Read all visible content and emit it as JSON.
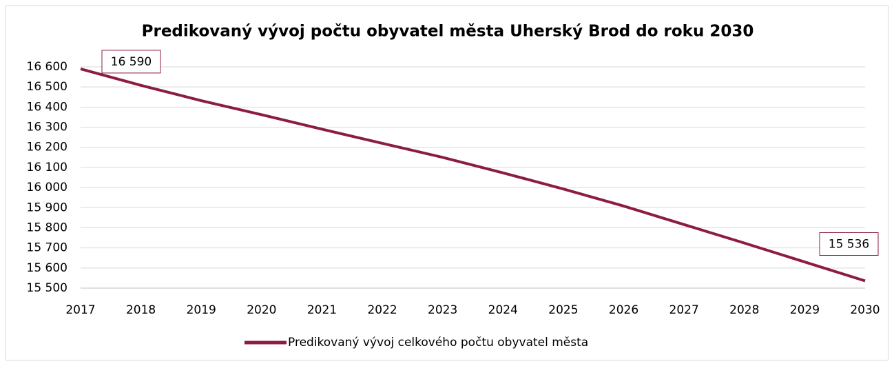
{
  "chart_data": {
    "type": "line",
    "title": "Predikovaný vývoj počtu obyvatel města Uherský Brod do roku 2030",
    "x": [
      2017,
      2018,
      2019,
      2020,
      2021,
      2022,
      2023,
      2024,
      2025,
      2026,
      2027,
      2028,
      2029,
      2030
    ],
    "xlim": [
      2017,
      2030
    ],
    "xticks": [
      2017,
      2018,
      2019,
      2020,
      2021,
      2022,
      2023,
      2024,
      2025,
      2026,
      2027,
      2028,
      2029,
      2030
    ],
    "series": [
      {
        "name": "Predikovaný vývoj celkového počtu obyvatel města",
        "color": "#8c1d40",
        "values": [
          16590,
          16508,
          16432,
          16362,
          16290,
          16220,
          16150,
          16073,
          15993,
          15908,
          15816,
          15724,
          15630,
          15536
        ],
        "value_labels": [
          "16 590",
          null,
          null,
          null,
          null,
          null,
          null,
          null,
          null,
          null,
          null,
          null,
          null,
          "15 536"
        ]
      }
    ],
    "ylim": [
      15500,
      16600
    ],
    "yticks": [
      {
        "value": 15500,
        "label": "15 500"
      },
      {
        "value": 15600,
        "label": "15 600"
      },
      {
        "value": 15700,
        "label": "15 700"
      },
      {
        "value": 15800,
        "label": "15 800"
      },
      {
        "value": 15900,
        "label": "15 900"
      },
      {
        "value": 16000,
        "label": "16 000"
      },
      {
        "value": 16100,
        "label": "16 100"
      },
      {
        "value": 16200,
        "label": "16 200"
      },
      {
        "value": 16300,
        "label": "16 300"
      },
      {
        "value": 16400,
        "label": "16 400"
      },
      {
        "value": 16500,
        "label": "16 500"
      },
      {
        "value": 16600,
        "label": "16 600"
      }
    ],
    "grid": true,
    "legend": "bottom"
  }
}
